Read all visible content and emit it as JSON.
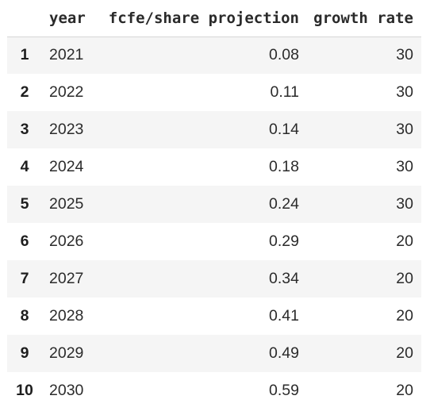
{
  "table": {
    "columns": {
      "index": "",
      "year": "year",
      "fcfe": "fcfe/share projection",
      "growth": "growth rate"
    },
    "rows": [
      {
        "index": "1",
        "year": "2021",
        "fcfe": "0.08",
        "growth": "30"
      },
      {
        "index": "2",
        "year": "2022",
        "fcfe": "0.11",
        "growth": "30"
      },
      {
        "index": "3",
        "year": "2023",
        "fcfe": "0.14",
        "growth": "30"
      },
      {
        "index": "4",
        "year": "2024",
        "fcfe": "0.18",
        "growth": "30"
      },
      {
        "index": "5",
        "year": "2025",
        "fcfe": "0.24",
        "growth": "30"
      },
      {
        "index": "6",
        "year": "2026",
        "fcfe": "0.29",
        "growth": "20"
      },
      {
        "index": "7",
        "year": "2027",
        "fcfe": "0.34",
        "growth": "20"
      },
      {
        "index": "8",
        "year": "2028",
        "fcfe": "0.41",
        "growth": "20"
      },
      {
        "index": "9",
        "year": "2029",
        "fcfe": "0.49",
        "growth": "20"
      },
      {
        "index": "10",
        "year": "2030",
        "fcfe": "0.59",
        "growth": "20"
      }
    ]
  },
  "colors": {
    "row_stripe": "#f5f5f5",
    "header_border": "#d6d6d6",
    "text": "#222222"
  }
}
